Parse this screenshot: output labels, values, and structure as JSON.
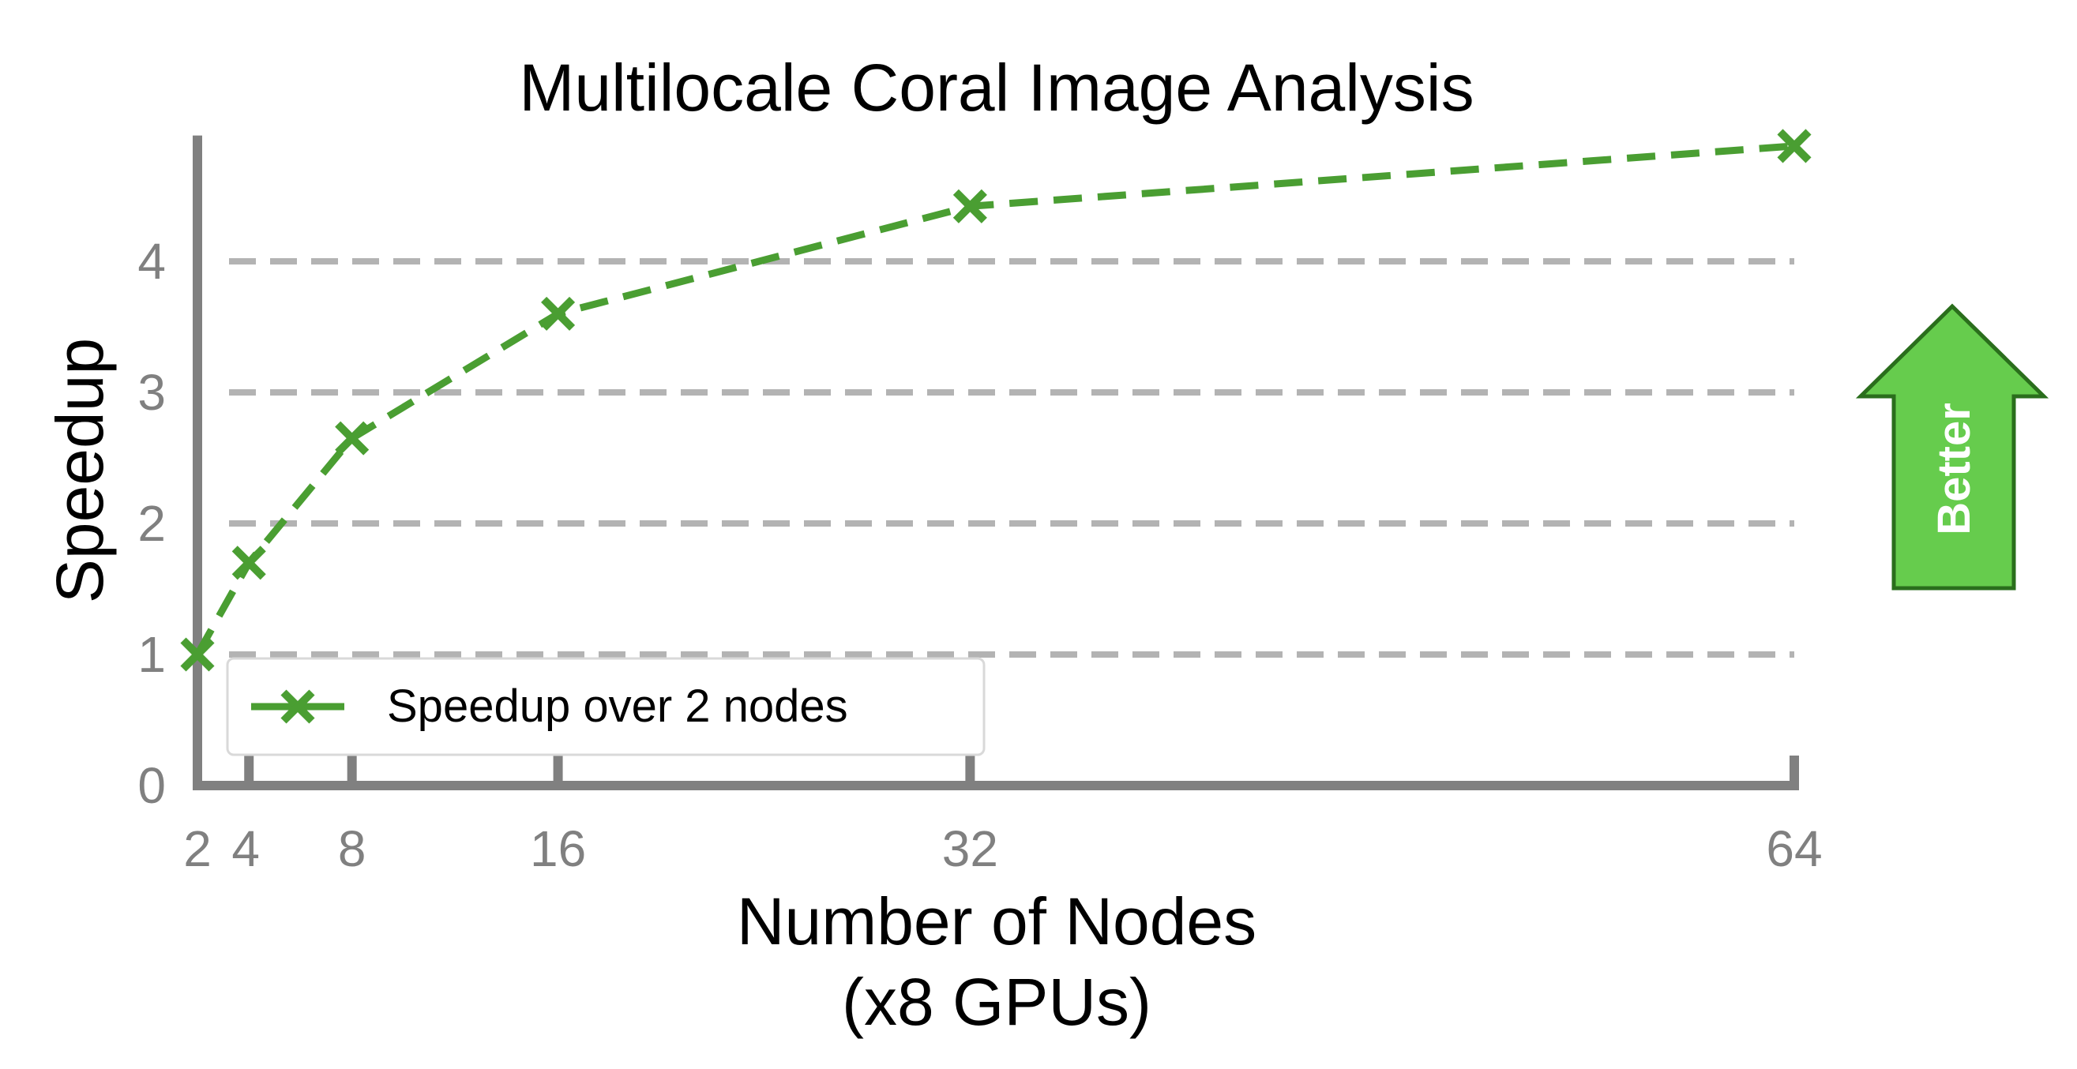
{
  "chart_data": {
    "type": "line",
    "title": "Multilocale Coral Image Analysis",
    "xlabel_line1": "Number of Nodes",
    "xlabel_line2": "(x8 GPUs)",
    "ylabel": "Speedup",
    "x": [
      2,
      4,
      8,
      16,
      32,
      64
    ],
    "x_tick_labels": [
      "2",
      "4",
      "8",
      "16",
      "32",
      "64"
    ],
    "y_ticks": [
      0,
      1,
      2,
      3,
      4
    ],
    "y_tick_labels": [
      "0",
      "1",
      "2",
      "3",
      "4"
    ],
    "xlim": [
      2,
      64
    ],
    "ylim": [
      0,
      4.9
    ],
    "grid": "horizontal dashed",
    "legend_position": "lower-left",
    "series": [
      {
        "name": "Speedup over 2 nodes",
        "values": [
          1.0,
          1.7,
          2.65,
          3.6,
          4.42,
          4.88
        ],
        "color": "#4a9e32",
        "line_style": "dashed",
        "marker": "x"
      }
    ],
    "annotation": {
      "text": "Better",
      "fill_color": "#66cc4d",
      "edge_color": "#2a6e1c"
    },
    "colors": {
      "axis": "#808080",
      "grid": "#b3b3b3",
      "tick_text": "#808080"
    }
  }
}
